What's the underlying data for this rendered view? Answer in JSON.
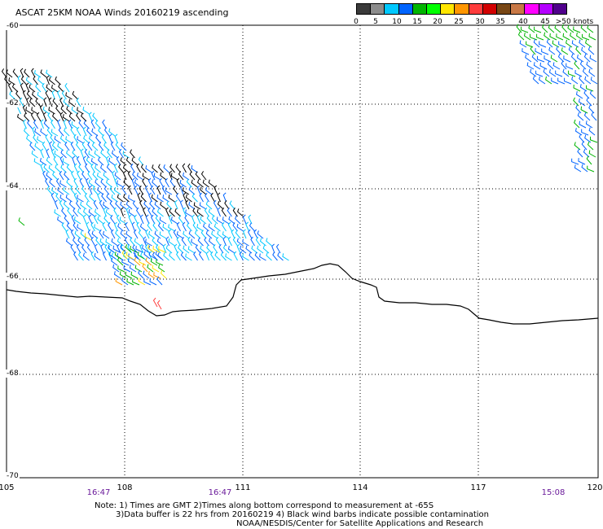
{
  "title": "ASCAT 25KM NOAA Winds 20160219 ascending",
  "legend": {
    "colors": [
      "#3a3a3a",
      "#8c8c8c",
      "#00c8ff",
      "#0064ff",
      "#00b400",
      "#00ff00",
      "#ffe600",
      "#ff9600",
      "#ff3c3c",
      "#d20000",
      "#784614",
      "#c87846",
      "#ff00ff",
      "#b400ff",
      "#50008c"
    ],
    "labels": [
      "0",
      "5",
      "10",
      "15",
      "20",
      "25",
      "30",
      "35",
      "40",
      "45",
      ">50 knots"
    ]
  },
  "latitude_labels": [
    "-60",
    "-62",
    "-64",
    "-66",
    "-68",
    "-70"
  ],
  "longitude_labels": [
    "105",
    "108",
    "111",
    "114",
    "117",
    "120"
  ],
  "time_labels": [
    "16:47",
    "16:47",
    "15:08"
  ],
  "notes": {
    "line1": "Note: 1) Times are GMT 2)Times along bottom correspond to measurement at -65S",
    "line2": "3)Data buffer is 22 hrs from 20160219 4) Black wind barbs indicate possible contamination",
    "line3": "NOAA/NESDIS/Center for Satellite Applications and Research"
  },
  "map": {
    "lon_range": [
      105,
      120
    ],
    "lat_range": [
      -60,
      -70
    ],
    "gridlines": "dotted",
    "coastline": "Antarctic coastline",
    "barb_colors": {
      "contaminated": "#000000",
      "5_10": "#00c8ff",
      "10_15": "#0064ff",
      "15_20": "#00b400",
      "20_25": "#ffe600",
      "25_30": "#ff9600",
      "30_35": "#ff3c3c"
    }
  }
}
